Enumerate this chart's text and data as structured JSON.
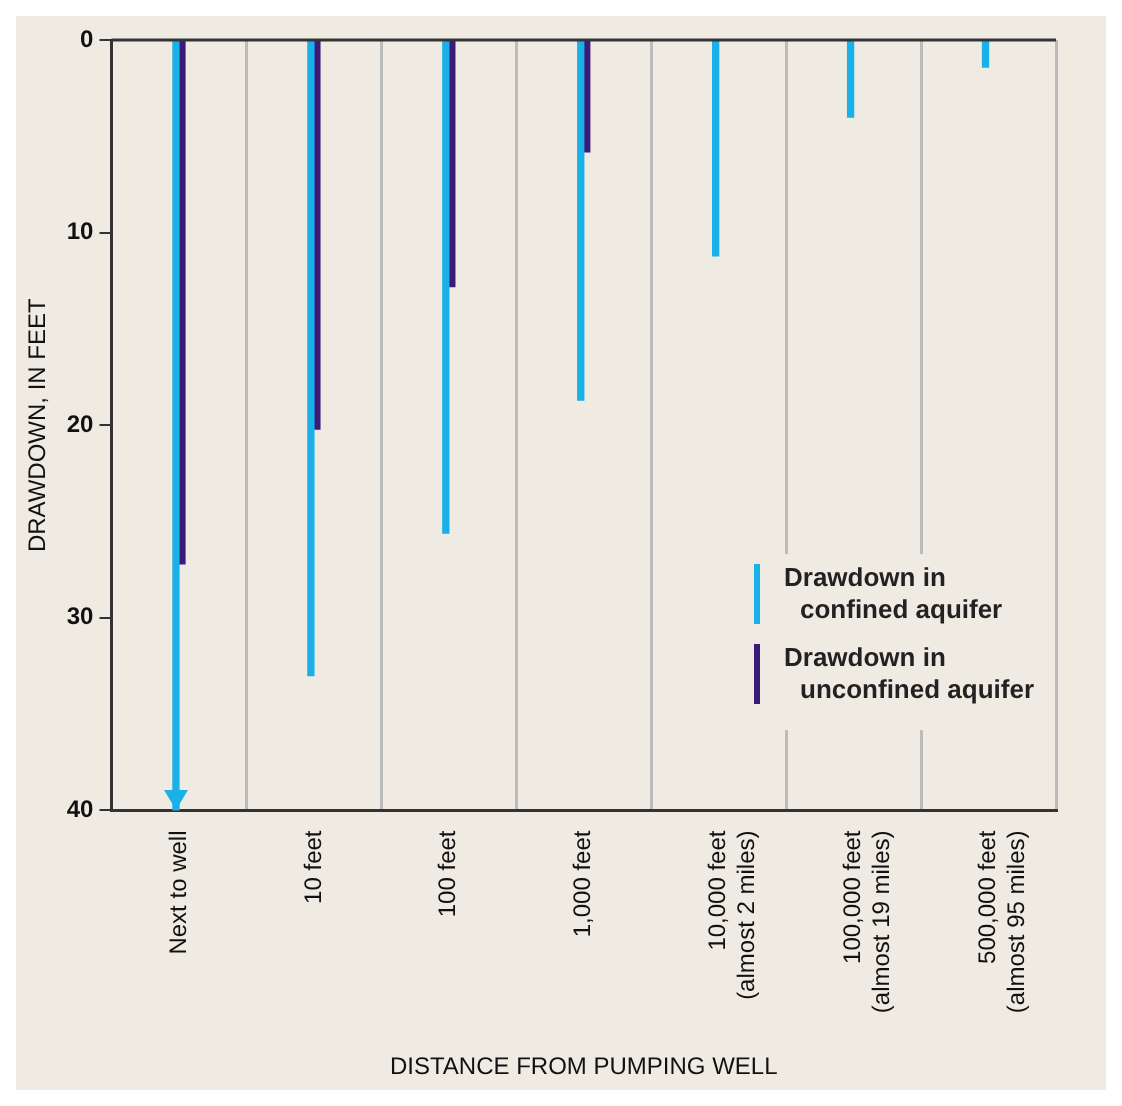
{
  "chart_data": {
    "type": "bar",
    "xlabel": "DISTANCE FROM PUMPING WELL",
    "ylabel": "DRAWDOWN, IN FEET",
    "categories": [
      "Next to well",
      "10 feet",
      "100 feet",
      "1,000 feet",
      "10,000 feet\n(almost 2 miles)",
      "100,000 feet\n(almost 19 miles)",
      "500,000 feet\n(almost 95 miles)"
    ],
    "series": [
      {
        "name": "Drawdown in\nconfined aquifer",
        "color": "#1ab0e8",
        "values": [
          40,
          33,
          25.6,
          18.7,
          11.2,
          4,
          1.4
        ]
      },
      {
        "name": "Drawdown in\nunconfined aquifer",
        "color": "#3d1a78",
        "values": [
          27.2,
          20.2,
          12.8,
          5.8,
          null,
          null,
          null
        ]
      }
    ],
    "ylim": [
      40,
      0
    ],
    "yticks": [
      0,
      10,
      20,
      30,
      40
    ],
    "grid": "x",
    "legend": "bottom right"
  }
}
